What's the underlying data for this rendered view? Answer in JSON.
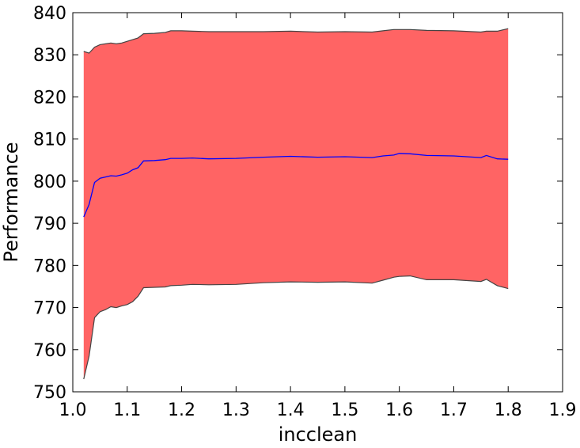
{
  "chart_data": {
    "type": "line",
    "title": "",
    "xlabel": "incclean",
    "ylabel": "Performance",
    "xlim": [
      1.0,
      1.9
    ],
    "ylim": [
      750,
      840
    ],
    "xticks": [
      1.0,
      1.1,
      1.2,
      1.3,
      1.4,
      1.5,
      1.6,
      1.7,
      1.8,
      1.9
    ],
    "xtick_labels": [
      "1.0",
      "1.1",
      "1.2",
      "1.3",
      "1.4",
      "1.5",
      "1.6",
      "1.7",
      "1.8",
      "1.9"
    ],
    "yticks": [
      750,
      760,
      770,
      780,
      790,
      800,
      810,
      820,
      830,
      840
    ],
    "ytick_labels": [
      "750",
      "760",
      "770",
      "780",
      "790",
      "800",
      "810",
      "820",
      "830",
      "840"
    ],
    "grid": false,
    "colors": {
      "band_fill": "#ff6464",
      "band_edge": "#444444",
      "mean_line": "#0000ff"
    },
    "series": [
      {
        "x": [
          1.02,
          1.03,
          1.04,
          1.05,
          1.06,
          1.07,
          1.08,
          1.09,
          1.1,
          1.11,
          1.12,
          1.13,
          1.15,
          1.17,
          1.18,
          1.2,
          1.22,
          1.25,
          1.3,
          1.35,
          1.4,
          1.45,
          1.5,
          1.55,
          1.57,
          1.59,
          1.6,
          1.62,
          1.65,
          1.7,
          1.75,
          1.76,
          1.78,
          1.8
        ],
        "mean": [
          791.5,
          794.5,
          799.7,
          800.7,
          801.0,
          801.3,
          801.2,
          801.5,
          801.9,
          802.7,
          803.2,
          804.8,
          804.9,
          805.1,
          805.4,
          805.4,
          805.5,
          805.3,
          805.4,
          805.7,
          805.9,
          805.7,
          805.8,
          805.6,
          806.0,
          806.2,
          806.6,
          806.5,
          806.1,
          806.0,
          805.6,
          806.1,
          805.3,
          805.2
        ],
        "upper": [
          830.8,
          830.4,
          831.8,
          832.4,
          832.6,
          832.8,
          832.6,
          832.8,
          833.2,
          833.6,
          834.0,
          835.0,
          835.1,
          835.3,
          835.7,
          835.7,
          835.6,
          835.5,
          835.5,
          835.5,
          835.6,
          835.4,
          835.5,
          835.4,
          835.7,
          836.0,
          836.0,
          836.0,
          835.8,
          835.7,
          835.4,
          835.6,
          835.6,
          836.2
        ],
        "lower": [
          753.0,
          758.5,
          767.6,
          769.0,
          769.5,
          770.2,
          770.0,
          770.4,
          770.7,
          771.4,
          772.7,
          774.7,
          774.8,
          774.9,
          775.2,
          775.3,
          775.5,
          775.4,
          775.5,
          775.9,
          776.1,
          776.0,
          776.1,
          775.8,
          776.5,
          777.2,
          777.4,
          777.5,
          776.6,
          776.6,
          776.2,
          776.7,
          775.2,
          774.5
        ]
      }
    ]
  }
}
